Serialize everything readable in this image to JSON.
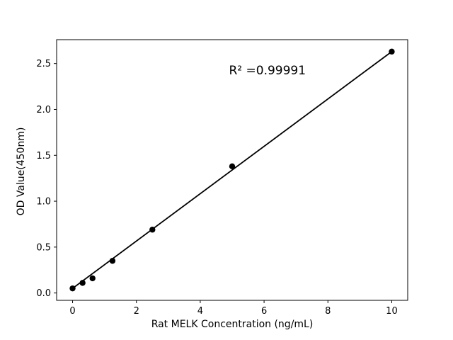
{
  "figure": {
    "background": "#ffffff"
  },
  "chart_data": {
    "type": "scatter",
    "title": "",
    "xlabel": "Rat MELK Concentration (ng/mL)",
    "ylabel": "OD Value(450nm)",
    "x": [
      0,
      0.313,
      0.625,
      1.25,
      2.5,
      5,
      10
    ],
    "y": [
      0.05,
      0.11,
      0.16,
      0.35,
      0.69,
      1.38,
      2.63
    ],
    "fit_line": {
      "x1": 0,
      "y1": 0.05,
      "x2": 10,
      "y2": 2.63
    },
    "xlim": [
      -0.5,
      10.5
    ],
    "ylim": [
      -0.08,
      2.76
    ],
    "xticks": [
      0,
      2,
      4,
      6,
      8,
      10
    ],
    "xtick_labels": [
      "0",
      "2",
      "4",
      "6",
      "8",
      "10"
    ],
    "yticks": [
      0.0,
      0.5,
      1.0,
      1.5,
      2.0,
      2.5
    ],
    "ytick_labels": [
      "0.0",
      "0.5",
      "1.0",
      "1.5",
      "2.0",
      "2.5"
    ],
    "annotation": {
      "text": "R² =0.99991",
      "x": 4.9,
      "y": 2.38
    },
    "grid": false,
    "legend": "none",
    "marker_color": "#000000",
    "line_color": "#000000"
  }
}
